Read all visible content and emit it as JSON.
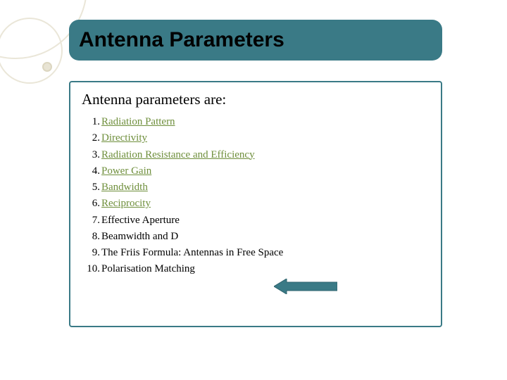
{
  "title": "Antenna Parameters",
  "subtitle": "Antenna parameters are:",
  "colors": {
    "pill_bg": "#3a7a86",
    "box_border": "#3a7a86",
    "link": "#6f8f3c",
    "deco_stroke": "#eae6d8",
    "arrow_fill": "#3a7a86",
    "arrow_stroke": "#2f636d"
  },
  "items": [
    {
      "n": "1.",
      "text": "Radiation Pattern",
      "link": true
    },
    {
      "n": "2.",
      "text": "Directivity",
      "link": true
    },
    {
      "n": "3.",
      "text": "Radiation Resistance  and Efficiency",
      "link": true
    },
    {
      "n": "4.",
      "text": "Power  Gain",
      "link": true
    },
    {
      "n": "5.",
      "text": "Bandwidth",
      "link": true
    },
    {
      "n": "6.",
      "text": "Reciprocity",
      "link": true
    },
    {
      "n": "7.",
      "text": "Effective Aperture",
      "link": false
    },
    {
      "n": "8.",
      "text": "Beamwidth and  D",
      "link": false
    },
    {
      "n": "9.",
      "text": "The Friis Formula: Antennas in Free Space",
      "link": false
    },
    {
      "n": "10.",
      "text": "Polarisation Matching",
      "link": false
    }
  ]
}
